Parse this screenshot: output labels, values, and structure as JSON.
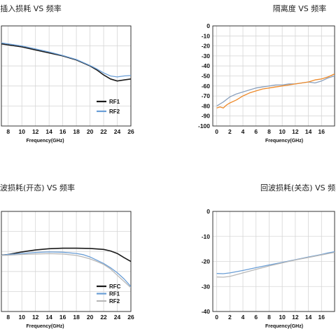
{
  "chart_data": [
    {
      "type": "line",
      "title": "插入损耗 VS 频率",
      "xlabel": "Frequency(GHz)",
      "ylabel": "",
      "x_ticks": [
        "8",
        "10",
        "12",
        "14",
        "16",
        "18",
        "20",
        "22",
        "24",
        "26"
      ],
      "y_ticks": [],
      "xlim": [
        7,
        26
      ],
      "ylim": [
        -5,
        0
      ],
      "grid": true,
      "legend_position": "bottom-right",
      "series": [
        {
          "name": "RF1",
          "color": "#1a1a1a",
          "points": [
            [
              7,
              -0.9
            ],
            [
              10,
              -1.05
            ],
            [
              12,
              -1.2
            ],
            [
              14,
              -1.35
            ],
            [
              16,
              -1.5
            ],
            [
              18,
              -1.7
            ],
            [
              20,
              -2.0
            ],
            [
              21,
              -2.2
            ],
            [
              22,
              -2.45
            ],
            [
              23,
              -2.65
            ],
            [
              24,
              -2.75
            ],
            [
              25,
              -2.7
            ],
            [
              26,
              -2.65
            ]
          ]
        },
        {
          "name": "RF2",
          "color": "#6a9ed6",
          "points": [
            [
              7,
              -0.85
            ],
            [
              10,
              -1.0
            ],
            [
              12,
              -1.15
            ],
            [
              14,
              -1.3
            ],
            [
              16,
              -1.48
            ],
            [
              18,
              -1.68
            ],
            [
              20,
              -1.98
            ],
            [
              21,
              -2.15
            ],
            [
              22,
              -2.35
            ],
            [
              23,
              -2.5
            ],
            [
              24,
              -2.55
            ],
            [
              25,
              -2.5
            ],
            [
              26,
              -2.48
            ]
          ]
        }
      ]
    },
    {
      "type": "line",
      "title": "隔离度 VS 频率",
      "xlabel": "Frequency(GHz)",
      "ylabel": "",
      "x_ticks": [
        "0",
        "2",
        "4",
        "6",
        "8",
        "10",
        "12",
        "14",
        "16"
      ],
      "y_ticks": [
        "0",
        "-10",
        "-20",
        "-30",
        "-40",
        "-50",
        "-60",
        "-70",
        "-80",
        "-90",
        "-100"
      ],
      "xlim": [
        -0.6,
        18
      ],
      "ylim": [
        -100,
        0
      ],
      "grid": true,
      "legend_position": "",
      "series": [
        {
          "name": "",
          "color": "#8aa0bd",
          "points": [
            [
              0,
              -80
            ],
            [
              0.5,
              -78
            ],
            [
              1,
              -76
            ],
            [
              2,
              -71
            ],
            [
              3,
              -68
            ],
            [
              4,
              -66
            ],
            [
              5,
              -64
            ],
            [
              6,
              -62
            ],
            [
              7,
              -61
            ],
            [
              8,
              -60
            ],
            [
              9,
              -59
            ],
            [
              10,
              -59
            ],
            [
              11,
              -58
            ],
            [
              12,
              -58
            ],
            [
              13,
              -57
            ],
            [
              14,
              -56
            ],
            [
              15,
              -57
            ],
            [
              16,
              -55
            ],
            [
              17,
              -52
            ],
            [
              18,
              -50
            ]
          ]
        },
        {
          "name": "",
          "color": "#ee8a2a",
          "points": [
            [
              0,
              -82
            ],
            [
              0.5,
              -81
            ],
            [
              1,
              -82
            ],
            [
              1.5,
              -79
            ],
            [
              2,
              -77
            ],
            [
              3,
              -74
            ],
            [
              4,
              -70
            ],
            [
              5,
              -67
            ],
            [
              6,
              -65
            ],
            [
              7,
              -63
            ],
            [
              8,
              -62
            ],
            [
              9,
              -61
            ],
            [
              10,
              -60
            ],
            [
              11,
              -59
            ],
            [
              12,
              -58
            ],
            [
              13,
              -57
            ],
            [
              14,
              -56
            ],
            [
              15,
              -54
            ],
            [
              16,
              -53
            ],
            [
              17,
              -51
            ],
            [
              18,
              -48
            ]
          ]
        }
      ]
    },
    {
      "type": "line",
      "title": "回波损耗(开态) VS 频率",
      "xlabel": "Frequency(GHz)",
      "ylabel": "",
      "x_ticks": [
        "8",
        "10",
        "12",
        "14",
        "16",
        "18",
        "20",
        "22",
        "24",
        "26"
      ],
      "y_ticks": [],
      "xlim": [
        7,
        26
      ],
      "ylim": [
        -40,
        0
      ],
      "grid": true,
      "legend_position": "bottom-right",
      "series": [
        {
          "name": "RFC",
          "color": "#1a1a1a",
          "points": [
            [
              7,
              -17.5
            ],
            [
              8,
              -17.2
            ],
            [
              10,
              -16.2
            ],
            [
              12,
              -15.4
            ],
            [
              14,
              -14.9
            ],
            [
              16,
              -14.7
            ],
            [
              18,
              -14.7
            ],
            [
              20,
              -14.8
            ],
            [
              22,
              -15.2
            ],
            [
              23,
              -15.8
            ],
            [
              24,
              -16.8
            ],
            [
              25,
              -18.5
            ],
            [
              26,
              -20
            ]
          ]
        },
        {
          "name": "RF1",
          "color": "#6a9ed6",
          "points": [
            [
              7,
              -17.5
            ],
            [
              8,
              -17.2
            ],
            [
              10,
              -16.8
            ],
            [
              12,
              -16.4
            ],
            [
              14,
              -16.2
            ],
            [
              16,
              -16.3
            ],
            [
              18,
              -16.8
            ],
            [
              19,
              -17.3
            ],
            [
              20,
              -18.2
            ],
            [
              21,
              -19.5
            ],
            [
              22,
              -20.8
            ],
            [
              23,
              -22.5
            ],
            [
              24,
              -24.5
            ],
            [
              25,
              -27
            ],
            [
              26,
              -30
            ]
          ]
        },
        {
          "name": "RF2",
          "color": "#b8b8b8",
          "points": [
            [
              7,
              -17.6
            ],
            [
              8,
              -17.5
            ],
            [
              10,
              -17.2
            ],
            [
              12,
              -17.0
            ],
            [
              14,
              -16.9
            ],
            [
              16,
              -17.0
            ],
            [
              18,
              -17.6
            ],
            [
              19,
              -18.2
            ],
            [
              20,
              -19.0
            ],
            [
              21,
              -20.0
            ],
            [
              22,
              -21.2
            ],
            [
              23,
              -23
            ],
            [
              24,
              -25.5
            ],
            [
              25,
              -28
            ],
            [
              26,
              -30.5
            ]
          ]
        }
      ]
    },
    {
      "type": "line",
      "title": "回波损耗(关态) VS 频率",
      "xlabel": "Frequency(GHz)",
      "ylabel": "",
      "x_ticks": [
        "0",
        "2",
        "4",
        "6",
        "8",
        "10",
        "12",
        "14",
        "16"
      ],
      "y_ticks": [
        "0",
        "-10",
        "-20",
        "-30",
        "-40"
      ],
      "xlim": [
        -0.6,
        18
      ],
      "ylim": [
        -40,
        0
      ],
      "grid": true,
      "legend_position": "",
      "series": [
        {
          "name": "",
          "color": "#6a9ed6",
          "points": [
            [
              0,
              -24.8
            ],
            [
              1,
              -24.9
            ],
            [
              2,
              -24.6
            ],
            [
              4,
              -23.6
            ],
            [
              6,
              -22.5
            ],
            [
              8,
              -21.4
            ],
            [
              10,
              -20.4
            ],
            [
              12,
              -19.3
            ],
            [
              14,
              -18.2
            ],
            [
              16,
              -17.2
            ],
            [
              17,
              -16.6
            ],
            [
              18,
              -16.1
            ]
          ]
        },
        {
          "name": "",
          "color": "#b8b8b8",
          "points": [
            [
              0,
              -26.2
            ],
            [
              1,
              -26.3
            ],
            [
              2,
              -26
            ],
            [
              4,
              -24.6
            ],
            [
              6,
              -23.2
            ],
            [
              8,
              -21.8
            ],
            [
              10,
              -20.6
            ],
            [
              12,
              -19.4
            ],
            [
              14,
              -18.4
            ],
            [
              16,
              -17.4
            ],
            [
              17,
              -16.9
            ],
            [
              18,
              -16.4
            ]
          ]
        }
      ]
    }
  ]
}
